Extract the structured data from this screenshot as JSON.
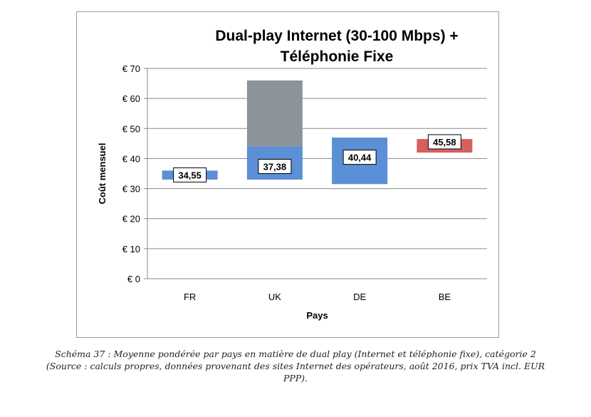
{
  "chart_data": {
    "type": "bar",
    "title": [
      "Dual-play Internet (30-100 Mbps) +",
      "Téléphonie Fixe"
    ],
    "xlabel": "Pays",
    "ylabel": "Coût mensuel",
    "ylim": [
      0,
      70
    ],
    "yticks": [
      "€ 0",
      "€ 10",
      "€ 20",
      "€ 30",
      "€ 40",
      "€ 50",
      "€ 60",
      "€ 70"
    ],
    "ytick_values": [
      0,
      10,
      20,
      30,
      40,
      50,
      60,
      70
    ],
    "categories": [
      "FR",
      "UK",
      "DE",
      "BE"
    ],
    "grid": true,
    "bars": [
      {
        "category": "FR",
        "low": 33,
        "high": 36,
        "value": 34.55,
        "label": "34,55",
        "color": "#5b8fd6"
      },
      {
        "category": "UK",
        "low": 33,
        "high": 44,
        "value": 37.38,
        "label": "37,38",
        "color": "#5b8fd6",
        "upper_low": 44,
        "upper_high": 66,
        "upper_color": "#8c939b"
      },
      {
        "category": "DE",
        "low": 31.5,
        "high": 47,
        "value": 40.44,
        "label": "40,44",
        "color": "#5b8fd6"
      },
      {
        "category": "BE",
        "low": 42,
        "high": 46.5,
        "value": 45.58,
        "label": "45,58",
        "color": "#d65f5f"
      }
    ]
  },
  "caption": [
    "Schéma 37 : Moyenne pondérée par pays en matière de dual play (Internet et téléphonie fixe), catégorie 2",
    "(Source : calculs propres, données provenant des sites Internet des opérateurs, août 2016, prix TVA incl. EUR",
    "PPP)."
  ]
}
